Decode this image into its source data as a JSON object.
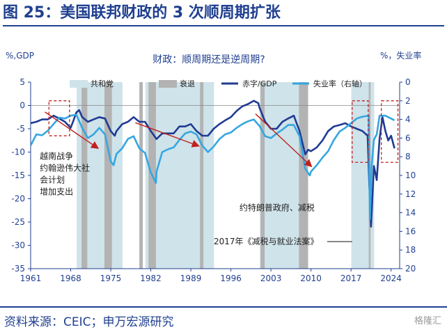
{
  "figure_title": "图 25：美国联邦财政的 3 次顺周期扩张",
  "source": "资料来源：CEIC；申万宏源研究",
  "watermark": "格隆汇",
  "chart_data": {
    "type": "line",
    "title": "财政：顺周期还是逆周期?",
    "ylabel_left": "%,GDP",
    "ylabel_right": "%，失业率",
    "ylim_left": [
      -35,
      5
    ],
    "ylim_right_inverted": [
      0,
      20
    ],
    "yticks_left": [
      5,
      0,
      -5,
      -10,
      -15,
      -20,
      -25,
      -30,
      -35
    ],
    "yticks_right": [
      0,
      2,
      4,
      6,
      8,
      10,
      12,
      14,
      16,
      18,
      20
    ],
    "xlim": [
      1961,
      2025.5
    ],
    "xticks": [
      1961,
      1968,
      1975,
      1982,
      1989,
      1996,
      2003,
      2010,
      2017,
      2024
    ],
    "legend": [
      {
        "key": "republican",
        "label": "共和党",
        "color": "#cfe3ea"
      },
      {
        "key": "recession",
        "label": "衰退",
        "color": "#b3b3b3"
      },
      {
        "key": "deficit",
        "label": "赤字/GDP",
        "color": "#1f3b93"
      },
      {
        "key": "unemployment",
        "label": "失业率（右轴）",
        "color": "#35a6e0"
      }
    ],
    "republican_terms": [
      [
        1969.05,
        1977.05
      ],
      [
        1981.05,
        1993.05
      ],
      [
        2001.05,
        2009.05
      ],
      [
        2017.05,
        2021.05
      ]
    ],
    "recessions": [
      [
        1969.9,
        1970.9
      ],
      [
        1973.9,
        1975.2
      ],
      [
        1980.0,
        1980.6
      ],
      [
        1981.6,
        1982.9
      ],
      [
        1990.6,
        1991.2
      ],
      [
        2001.2,
        2001.9
      ],
      [
        2007.9,
        2009.5
      ],
      [
        2020.1,
        2020.4
      ]
    ],
    "series": [
      {
        "name": "赤字/GDP",
        "axis": "left",
        "x": [
          1961,
          1962,
          1963,
          1964,
          1965,
          1966,
          1967,
          1968,
          1968.5,
          1969,
          1969.5,
          1970,
          1971,
          1972,
          1973,
          1974,
          1975,
          1975.7,
          1976,
          1977,
          1978,
          1979,
          1980,
          1981,
          1982,
          1983,
          1984,
          1985,
          1986,
          1987,
          1988,
          1989,
          1990,
          1991,
          1992,
          1993,
          1994,
          1995,
          1996,
          1997,
          1998,
          1999,
          2000,
          2000.8,
          2001,
          2002,
          2003,
          2004,
          2005,
          2006,
          2007,
          2008,
          2009,
          2009.5,
          2010,
          2011,
          2012,
          2013,
          2014,
          2015,
          2016,
          2017,
          2018,
          2019,
          2019.9,
          2020.2,
          2020.5,
          2021,
          2021.5,
          2022,
          2022.5,
          2023,
          2023.5,
          2024,
          2024.6
        ],
        "y": [
          -3.8,
          -3.5,
          -3.0,
          -3.0,
          -2.2,
          -2.8,
          -3.5,
          -4.8,
          -3.2,
          -1.5,
          -1.0,
          -2.5,
          -3.5,
          -3.0,
          -2.5,
          -2.8,
          -5.5,
          -6.5,
          -5.5,
          -4.0,
          -3.5,
          -2.5,
          -3.5,
          -3.5,
          -5.5,
          -7.2,
          -6.0,
          -6.0,
          -6.0,
          -4.5,
          -4.5,
          -4.0,
          -5.5,
          -6.5,
          -6.5,
          -5.0,
          -4.0,
          -3.2,
          -2.5,
          -1.2,
          -0.2,
          0.3,
          1.0,
          0.5,
          -0.5,
          -3.5,
          -5.0,
          -5.0,
          -3.5,
          -2.8,
          -2.2,
          -5.5,
          -10.5,
          -9.5,
          -9.8,
          -9.0,
          -7.5,
          -5.5,
          -4.5,
          -4.2,
          -3.8,
          -4.5,
          -5.0,
          -5.5,
          -6.5,
          -17.0,
          -26.0,
          -13.0,
          -16.0,
          -7.0,
          -2.5,
          -5.5,
          -7.5,
          -6.5,
          -9.2
        ]
      },
      {
        "name": "失业率（右轴）",
        "axis": "right",
        "x": [
          1961,
          1962,
          1963,
          1964,
          1965,
          1966,
          1967,
          1968,
          1969,
          1970,
          1971,
          1972,
          1973,
          1974,
          1975,
          1975.5,
          1976,
          1977,
          1978,
          1979,
          1980,
          1981,
          1982,
          1982.9,
          1983,
          1984,
          1985,
          1986,
          1987,
          1988,
          1989,
          1990,
          1991,
          1992,
          1993,
          1994,
          1995,
          1996,
          1997,
          1998,
          1999,
          2000,
          2001,
          2002,
          2003,
          2004,
          2005,
          2006,
          2007,
          2008,
          2009,
          2009.8,
          2010,
          2011,
          2012,
          2013,
          2014,
          2015,
          2016,
          2017,
          2018,
          2019,
          2020.1,
          2020.3,
          2020.6,
          2021,
          2021.5,
          2022,
          2023,
          2024,
          2024.6
        ],
        "y": [
          6.8,
          5.6,
          5.7,
          5.2,
          4.5,
          3.8,
          3.9,
          3.6,
          3.5,
          4.9,
          6.0,
          5.6,
          4.9,
          5.6,
          8.5,
          8.9,
          7.7,
          7.1,
          6.1,
          5.8,
          7.1,
          7.6,
          9.7,
          10.8,
          9.6,
          7.5,
          7.2,
          7.0,
          6.2,
          5.5,
          5.3,
          5.6,
          6.8,
          7.5,
          6.9,
          6.1,
          5.6,
          5.4,
          4.9,
          4.5,
          4.2,
          4.0,
          4.7,
          5.8,
          6.0,
          5.5,
          5.1,
          4.6,
          4.6,
          5.8,
          9.3,
          10.0,
          9.6,
          8.9,
          8.1,
          7.4,
          6.2,
          5.3,
          4.9,
          4.4,
          3.9,
          3.7,
          3.6,
          14.7,
          9.0,
          6.2,
          5.6,
          3.6,
          3.6,
          3.9,
          4.1
        ]
      }
    ],
    "trend_arrows": [
      {
        "from": [
          1963.5,
          -1.4
        ],
        "to": [
          1972.8,
          -9.2
        ]
      },
      {
        "from": [
          1979.3,
          -3.7
        ],
        "to": [
          1990.4,
          -8.7
        ]
      },
      {
        "from": [
          2000.3,
          -1.8
        ],
        "to": [
          2010.1,
          -13.1
        ]
      }
    ],
    "highlight_boxes": [
      {
        "x": [
          1964.2,
          1967.8
        ],
        "y": [
          1.0,
          -6.5
        ]
      },
      {
        "x": [
          2017.2,
          2020.0
        ],
        "y": [
          1.0,
          -12.2
        ]
      },
      {
        "x": [
          2022.3,
          2025.2
        ],
        "y": [
          1.0,
          -12.2
        ]
      }
    ],
    "annotations": [
      {
        "label_lines": [
          "越南战争",
          "约翰逊伟大社",
          "会计划",
          "增加支出"
        ],
        "at": [
          1962.6,
          -11.5
        ]
      },
      {
        "label_lines": [
          "约特朗普政府、减税"
        ],
        "at": [
          1997.5,
          -22.5
        ]
      },
      {
        "label_lines": [
          "2017年《减税与就业法案》"
        ],
        "at": [
          1993.0,
          -29.8
        ],
        "leader_to": [
          2017.2,
          -29.8
        ]
      }
    ]
  }
}
